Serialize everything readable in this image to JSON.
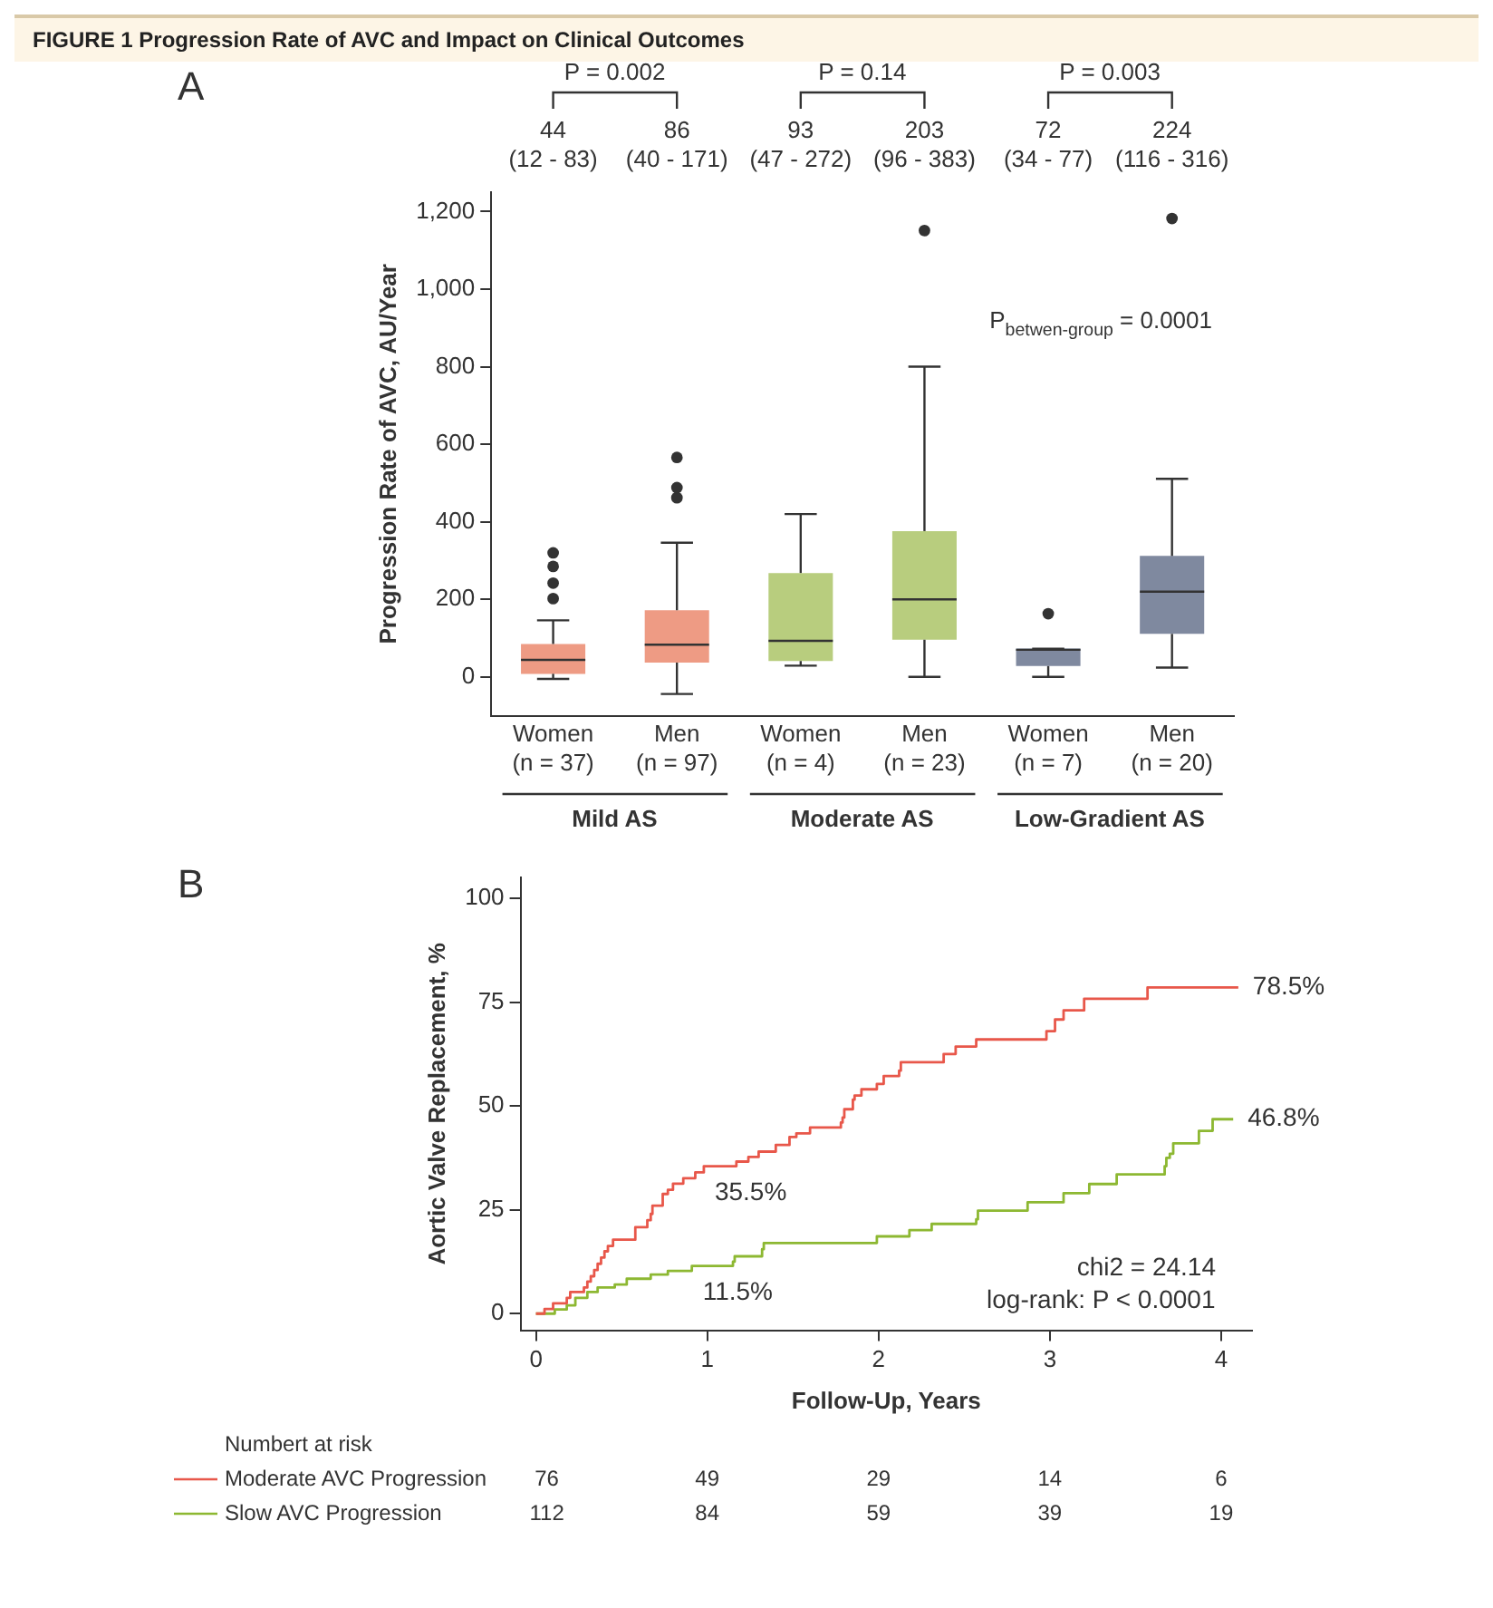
{
  "chart_data": [
    {
      "type": "box",
      "title": "FIGURE 1 Progression Rate of AVC and Impact on Clinical Outcomes",
      "subtitle": "A",
      "ylabel": "Progression Rate of AVC, AU/Year",
      "categories": [
        "Women\n(n = 37)",
        "Men\n(n = 97)",
        "Women\n(n = 4)",
        "Men\n(n = 23)",
        "Women\n(n = 7)",
        "Men\n(n = 20)"
      ],
      "colors": [
        "#ee9b84",
        "#ee9b84",
        "#b8cd7e",
        "#b8cd7e",
        "#7f899f",
        "#7f899f"
      ],
      "boxes": [
        {
          "low": -5,
          "q1": 8,
          "median": 44,
          "q3": 85,
          "high": 146,
          "outliers": [
            202,
            242,
            285,
            320
          ]
        },
        {
          "low": -44,
          "q1": 37,
          "median": 83,
          "q3": 172,
          "high": 346,
          "outliers": [
            462,
            488,
            566
          ]
        },
        {
          "low": 29,
          "q1": 41,
          "median": 93,
          "q3": 268,
          "high": 420
        },
        {
          "low": 0,
          "q1": 96,
          "median": 200,
          "q3": 376,
          "high": 800,
          "outliers": [
            1151
          ]
        },
        {
          "low": 0,
          "q1": 28,
          "median": 70,
          "q3": 73,
          "high": 73,
          "outliers": [
            163
          ]
        },
        {
          "low": 24,
          "q1": 111,
          "median": 220,
          "q3": 312,
          "high": 511,
          "outliers": [
            1182
          ]
        }
      ],
      "ylim": [
        -100,
        1250
      ],
      "yticks": [
        0,
        200,
        400,
        600,
        800,
        {
          "value": 1000,
          "label": "1,000"
        },
        {
          "value": 1200,
          "label": "1,200"
        }
      ],
      "annotations": [
        "P = 0.002",
        "P = 0.14",
        "P = 0.003",
        "44\n(12 - 83)",
        "86\n(40 - 171)",
        "93\n(47 - 272)",
        "203\n(96 - 383)",
        "72\n(34 - 77)",
        "224\n(116 - 316)",
        "P$_{betwen-group}$ = 0.0001",
        "Mild AS",
        "Moderate AS",
        "Low-Gradient AS"
      ]
    },
    {
      "type": "step",
      "xlabel": "Follow-Up, Years",
      "ylabel": "Aortic Valve Replacement, %",
      "xlim": [
        -0.09,
        4.18
      ],
      "xticks": [
        0,
        1,
        2,
        3,
        4
      ],
      "ylim": [
        -4,
        105
      ],
      "yticks": [
        0,
        25,
        50,
        75,
        100
      ],
      "legend": "bottom",
      "marker": "none",
      "series": [
        {
          "name": "Moderate AVC Progression",
          "color": "#e8574a",
          "x": [
            0,
            0.05,
            0.1,
            0.18,
            0.2,
            0.28,
            0.3,
            0.32,
            0.34,
            0.36,
            0.38,
            0.4,
            0.42,
            0.45,
            0.58,
            0.65,
            0.67,
            0.68,
            0.74,
            0.77,
            0.8,
            0.86,
            0.93,
            0.98,
            1.17,
            1.24,
            1.3,
            1.4,
            1.48,
            1.52,
            1.6,
            1.78,
            1.79,
            1.8,
            1.85,
            1.86,
            1.9,
            1.99,
            2.03,
            2.12,
            2.13,
            2.38,
            2.45,
            2.57,
            2.98,
            3.03,
            3.08,
            3.2,
            3.57,
            4.1
          ],
          "values": [
            0,
            1.1,
            2.5,
            3.8,
            5.2,
            6.3,
            7.7,
            9,
            10.5,
            12,
            13.5,
            15,
            16.3,
            17.8,
            20.8,
            22.5,
            24,
            26,
            28.8,
            29.8,
            31.3,
            32.6,
            34,
            35.5,
            36.6,
            37.7,
            39,
            40.6,
            42.5,
            43.4,
            44.8,
            46,
            47.2,
            49.2,
            51.5,
            52.5,
            54,
            55.3,
            57.2,
            58.5,
            60.5,
            62.5,
            64.3,
            66,
            68,
            70.8,
            73,
            75.8,
            78.5,
            78.5
          ]
        },
        {
          "name": "Slow AVC Progression",
          "color": "#8db832",
          "x": [
            0,
            0.11,
            0.18,
            0.23,
            0.3,
            0.36,
            0.46,
            0.53,
            0.67,
            0.77,
            0.91,
            1.15,
            1.16,
            1.32,
            1.33,
            1.99,
            2.18,
            2.31,
            2.57,
            2.58,
            2.87,
            3.08,
            3.23,
            3.39,
            3.67,
            3.68,
            3.7,
            3.72,
            3.87,
            3.95,
            4.07
          ],
          "values": [
            0,
            1,
            2,
            3.8,
            5.2,
            6.3,
            7,
            8.4,
            9.4,
            10.3,
            11.5,
            12.5,
            13.8,
            15.5,
            17,
            18.6,
            20.1,
            21.6,
            22.7,
            24.8,
            26.8,
            29,
            31.2,
            33.5,
            35.5,
            37.5,
            38.5,
            41,
            44,
            46.8,
            46.8
          ]
        }
      ],
      "annotations": [
        {
          "text": "78.5%",
          "x": 4.1,
          "y": 78.5
        },
        {
          "text": "46.8%",
          "x": 4.07,
          "y": 46.8
        },
        {
          "text": "35.5%",
          "x": 0.98,
          "y": 35.5
        },
        {
          "text": "11.5%",
          "x": 0.91,
          "y": 11.5
        },
        "chi2 = 24.14",
        "log-rank: P < 0.0001",
        "Numbert at risk",
        "76",
        "49",
        "29",
        "14",
        "6",
        "112",
        "84",
        "59",
        "39",
        "19",
        "B"
      ]
    }
  ]
}
